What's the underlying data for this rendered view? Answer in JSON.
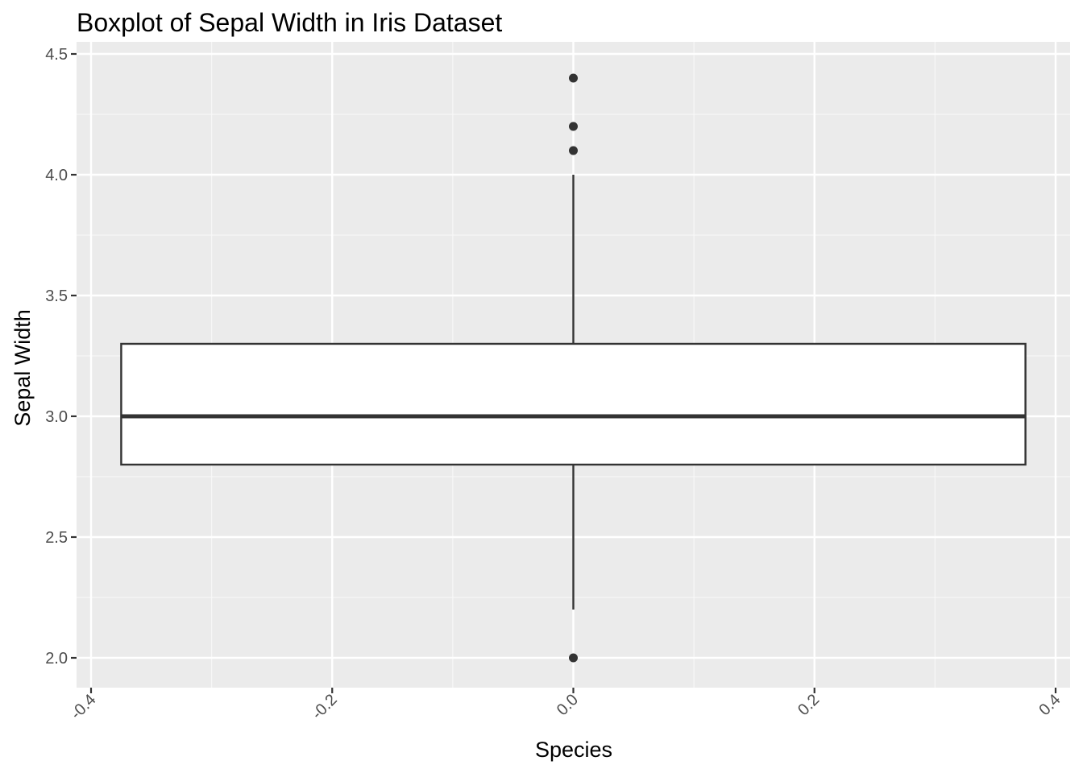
{
  "chart_data": {
    "type": "boxplot",
    "title": "Boxplot of Sepal Width in Iris Dataset",
    "xlabel": "Species",
    "ylabel": "Sepal Width",
    "xlim": [
      -0.4,
      0.4
    ],
    "ylim": [
      2.0,
      4.5
    ],
    "x_ticks": [
      "-0.4",
      "-0.2",
      "0.0",
      "0.2",
      "0.4"
    ],
    "x_tick_values": [
      -0.4,
      -0.2,
      0.0,
      0.2,
      0.4
    ],
    "y_ticks": [
      "2.0",
      "2.5",
      "3.0",
      "3.5",
      "4.0",
      "4.5"
    ],
    "y_tick_values": [
      2.0,
      2.5,
      3.0,
      3.5,
      4.0,
      4.5
    ],
    "grid": true,
    "legend": "none",
    "box": {
      "x_center": 0.0,
      "x_left": -0.375,
      "x_right": 0.375,
      "whisker_low": 2.2,
      "q1": 2.8,
      "median": 3.0,
      "q3": 3.3,
      "whisker_high": 4.0,
      "outliers": [
        4.4,
        4.2,
        4.1,
        2.0
      ]
    },
    "colors": {
      "panel_background": "#ebebeb",
      "grid_major": "#ffffff",
      "grid_minor": "#f7f7f7",
      "box_fill": "#ffffff",
      "box_stroke": "#333333",
      "tick_color": "#333333"
    }
  }
}
